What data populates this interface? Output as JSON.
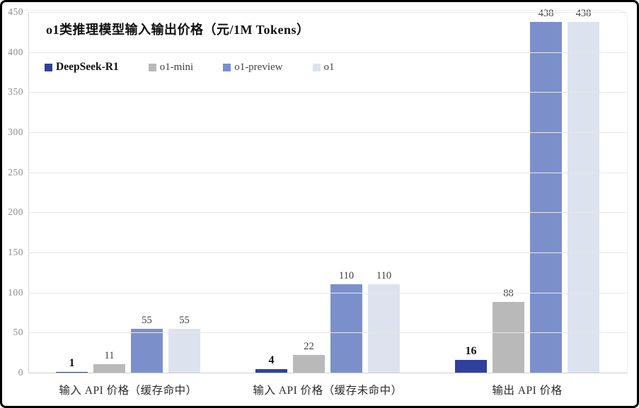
{
  "chart_data": {
    "type": "bar",
    "title": "o1类推理模型输入输出价格（元/1M Tokens）",
    "categories": [
      "输入 API 价格（缓存命中）",
      "输入 API 价格（缓存未命中）",
      "输出 API 价格"
    ],
    "series": [
      {
        "name": "DeepSeek-R1",
        "color": "#2f419e",
        "values": [
          1,
          4,
          16
        ],
        "emphasis": true
      },
      {
        "name": "o1-mini",
        "color": "#b9b9b9",
        "values": [
          11,
          22,
          88
        ],
        "emphasis": false
      },
      {
        "name": "o1-preview",
        "color": "#7b90cb",
        "values": [
          55,
          110,
          438
        ],
        "emphasis": false
      },
      {
        "name": "o1",
        "color": "#dce3ee",
        "values": [
          55,
          110,
          438
        ],
        "emphasis": false
      }
    ],
    "ylim": [
      0,
      450
    ],
    "ytick_step": 50,
    "yticks": [
      0,
      50,
      100,
      150,
      200,
      250,
      300,
      350,
      400,
      450
    ],
    "grid": true,
    "data_labels": true,
    "legend_position": "top-left"
  },
  "colors": {
    "deepseek_accent": "#2f419e",
    "gridline": "#e7e7e7",
    "frame_border": "#000000"
  }
}
